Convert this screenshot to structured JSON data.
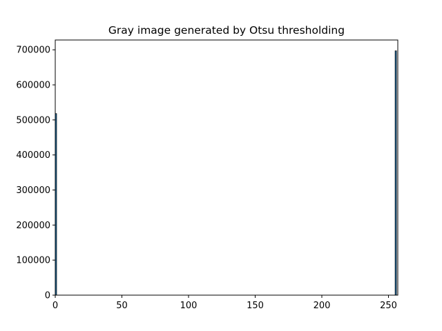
{
  "chart_data": {
    "type": "bar",
    "title": "Gray image generated by Otsu thresholding",
    "xlabel": "",
    "ylabel": "",
    "x": [
      0,
      255
    ],
    "values": [
      518000,
      697000
    ],
    "bin_width": 1,
    "xlim": [
      0,
      257
    ],
    "ylim": [
      0,
      728000
    ],
    "xticks": [
      0,
      50,
      100,
      150,
      200,
      250
    ],
    "xtick_labels": [
      "0",
      "50",
      "100",
      "150",
      "200",
      "250"
    ],
    "yticks": [
      0,
      100000,
      200000,
      300000,
      400000,
      500000,
      600000,
      700000
    ],
    "ytick_labels": [
      "0",
      "100000",
      "200000",
      "300000",
      "400000",
      "500000",
      "600000",
      "700000"
    ],
    "grid": false,
    "legend": "none",
    "bar_color": "#1f77b4",
    "edge_color": "#000000"
  }
}
